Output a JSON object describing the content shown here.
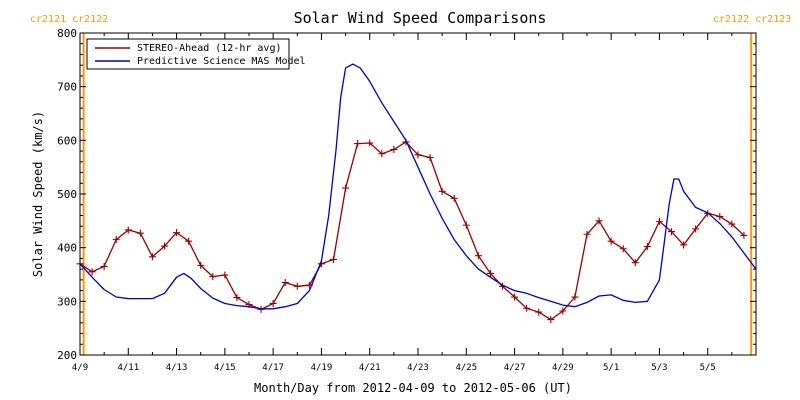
{
  "chart_data": {
    "type": "line",
    "title": "Solar Wind Speed Comparisons",
    "xlabel": "Month/Day from 2012-04-09 to 2012-05-06 (UT)",
    "ylabel": "Solar Wind Speed (km/s)",
    "xlim": [
      0,
      28
    ],
    "ylim": [
      200,
      800
    ],
    "yticks": [
      200,
      300,
      400,
      500,
      600,
      700,
      800
    ],
    "xticks": [
      {
        "day": 0,
        "label": "4/9"
      },
      {
        "day": 2,
        "label": "4/11"
      },
      {
        "day": 4,
        "label": "4/13"
      },
      {
        "day": 6,
        "label": "4/15"
      },
      {
        "day": 8,
        "label": "4/17"
      },
      {
        "day": 10,
        "label": "4/19"
      },
      {
        "day": 12,
        "label": "4/21"
      },
      {
        "day": 14,
        "label": "4/23"
      },
      {
        "day": 16,
        "label": "4/25"
      },
      {
        "day": 18,
        "label": "4/27"
      },
      {
        "day": 20,
        "label": "4/29"
      },
      {
        "day": 22,
        "label": "5/1"
      },
      {
        "day": 24,
        "label": "5/3"
      },
      {
        "day": 26,
        "label": "5/5"
      }
    ],
    "carrington": {
      "left_label": "cr2121 cr2122",
      "right_label": "cr2122 cr2123",
      "lines_day": [
        0.15,
        27.8
      ],
      "color": "#ff9900"
    },
    "legend_position": "top-left",
    "series": [
      {
        "name": "STEREO-Ahead (12-hr avg)",
        "color": "#990000",
        "markers": "plus",
        "x": [
          0.0,
          0.5,
          1.0,
          1.5,
          2.0,
          2.5,
          3.0,
          3.5,
          4.0,
          4.5,
          5.0,
          5.5,
          6.0,
          6.5,
          7.0,
          7.5,
          8.0,
          8.5,
          9.0,
          9.5,
          10.0,
          10.5,
          11.0,
          11.5,
          12.0,
          12.5,
          13.0,
          13.5,
          14.0,
          14.5,
          15.0,
          15.5,
          16.0,
          16.5,
          17.0,
          17.5,
          18.0,
          18.5,
          19.0,
          19.5,
          20.0,
          20.5,
          21.0,
          21.5,
          22.0,
          22.5,
          23.0,
          23.5,
          24.0,
          24.5,
          25.0,
          25.5,
          26.0,
          26.5,
          27.0,
          27.5
        ],
        "values": [
          370,
          355,
          365,
          415,
          433,
          427,
          383,
          403,
          428,
          412,
          367,
          346,
          349,
          307,
          294,
          285,
          296,
          335,
          328,
          330,
          370,
          378,
          511,
          594,
          595,
          575,
          583,
          597,
          573,
          568,
          505,
          492,
          442,
          385,
          352,
          328,
          308,
          287,
          280,
          266,
          282,
          308,
          425,
          450,
          412,
          398,
          372,
          402,
          449,
          430,
          405,
          435,
          464,
          458,
          444,
          423
        ]
      },
      {
        "name": "Predictive Science MAS Model",
        "color": "#0000cc",
        "markers": "none",
        "x": [
          0.0,
          0.5,
          1.0,
          1.5,
          2.0,
          2.5,
          3.0,
          3.5,
          4.0,
          4.3,
          4.6,
          5.0,
          5.5,
          6.0,
          6.5,
          7.0,
          7.5,
          8.0,
          8.5,
          9.0,
          9.5,
          10.0,
          10.3,
          10.6,
          10.8,
          11.0,
          11.3,
          11.6,
          12.0,
          12.5,
          13.0,
          13.5,
          14.0,
          14.5,
          15.0,
          15.5,
          16.0,
          16.5,
          17.0,
          17.5,
          18.0,
          18.5,
          19.0,
          19.5,
          20.0,
          20.5,
          21.0,
          21.5,
          22.0,
          22.5,
          23.0,
          23.5,
          24.0,
          24.2,
          24.4,
          24.6,
          24.8,
          25.0,
          25.5,
          26.0,
          26.5,
          27.0,
          27.5,
          28.0
        ],
        "values": [
          370,
          345,
          322,
          308,
          305,
          305,
          305,
          315,
          345,
          352,
          343,
          324,
          306,
          296,
          292,
          290,
          286,
          286,
          290,
          296,
          320,
          375,
          460,
          580,
          680,
          735,
          742,
          735,
          710,
          670,
          635,
          600,
          550,
          500,
          455,
          415,
          385,
          360,
          345,
          330,
          320,
          315,
          307,
          300,
          293,
          290,
          298,
          310,
          312,
          302,
          298,
          300,
          340,
          410,
          480,
          528,
          528,
          505,
          475,
          465,
          445,
          420,
          390,
          360
        ]
      }
    ]
  }
}
